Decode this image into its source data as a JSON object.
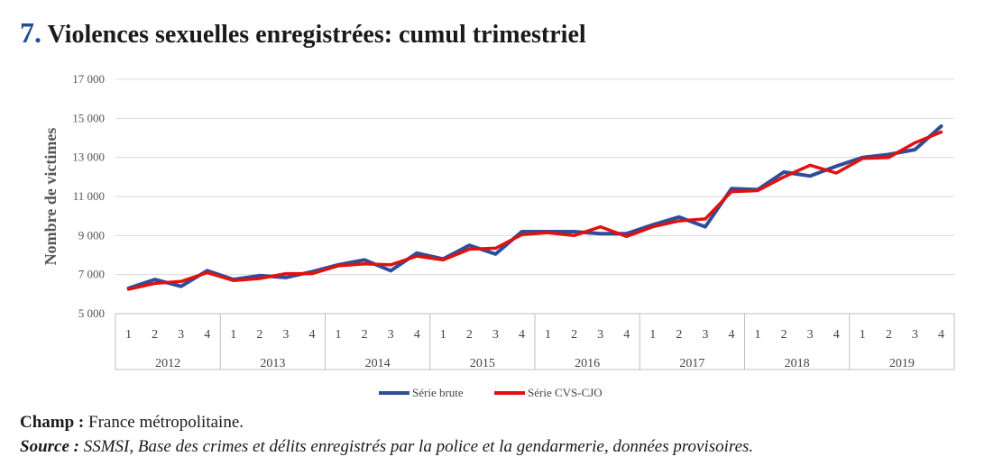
{
  "header": {
    "number": "7.",
    "title": "Violences sexuelles enregistrées: cumul trimestriel"
  },
  "notes": {
    "champ_label": "Champ :",
    "champ_text": " France métropolitaine.",
    "source_label": "Source :",
    "source_text": " SSMSI, Base des crimes et délits enregistrés par la police et la gendarmerie, données provisoires."
  },
  "chart_data": {
    "type": "line",
    "title": "",
    "ylabel": "Nombre de victimes",
    "xlabel": "",
    "ylim": [
      5000,
      17000
    ],
    "yticks": [
      5000,
      7000,
      9000,
      11000,
      13000,
      15000,
      17000
    ],
    "ytick_labels": [
      "5 000",
      "7 000",
      "9 000",
      "11 000",
      "13 000",
      "15 000",
      "17 000"
    ],
    "grid": true,
    "legend_position": "bottom-center",
    "years": [
      "2012",
      "2013",
      "2014",
      "2015",
      "2016",
      "2017",
      "2018",
      "2019"
    ],
    "quarters": [
      "1",
      "2",
      "3",
      "4"
    ],
    "series": [
      {
        "name": "Série brute",
        "color": "#2e4d9a",
        "values": [
          6300,
          6750,
          6400,
          7200,
          6750,
          6950,
          6850,
          7150,
          7500,
          7750,
          7200,
          8100,
          7800,
          8500,
          8050,
          9200,
          9200,
          9200,
          9100,
          9100,
          9550,
          9950,
          9450,
          11400,
          11350,
          12250,
          12050,
          12550,
          13000,
          13150,
          13400,
          14600
        ]
      },
      {
        "name": "Série CVS-CJO",
        "color": "#e3110e",
        "values": [
          6250,
          6550,
          6650,
          7100,
          6700,
          6800,
          7050,
          7050,
          7450,
          7550,
          7500,
          7950,
          7750,
          8300,
          8350,
          9050,
          9150,
          9000,
          9450,
          8950,
          9450,
          9750,
          9850,
          11250,
          11300,
          12000,
          12600,
          12200,
          12950,
          13000,
          13750,
          14300
        ]
      }
    ]
  }
}
